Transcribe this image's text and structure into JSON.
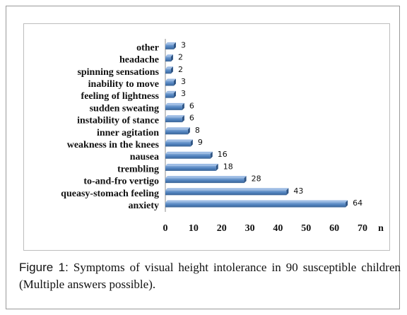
{
  "chart_data": {
    "type": "bar",
    "orientation": "horizontal",
    "categories": [
      "anxiety",
      "queasy-stomach feeling",
      "to-and-fro vertigo",
      "trembling",
      "nausea",
      "weakness in the knees",
      "inner agitation",
      "instability of stance",
      "sudden sweating",
      "feeling of lightness",
      "inability to move",
      "spinning sensations",
      "headache",
      "other"
    ],
    "values": [
      64,
      43,
      28,
      18,
      16,
      9,
      8,
      6,
      6,
      3,
      3,
      2,
      2,
      3
    ],
    "xlim": [
      0,
      70
    ],
    "xticks": [
      "0",
      "10",
      "20",
      "30",
      "40",
      "50",
      "60",
      "70"
    ],
    "xlabel": "n",
    "bar_color": "#4f81bd",
    "grid": false,
    "legend": "none"
  },
  "caption": {
    "label": "Figure 1:",
    "text": " Symptoms of visual height intolerance in 90 susceptible children (Multiple answers possible)."
  }
}
